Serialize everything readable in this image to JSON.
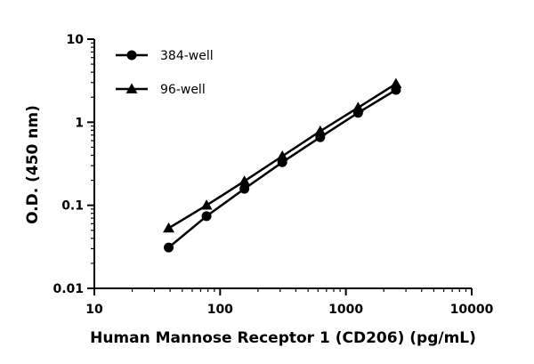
{
  "chart_data": {
    "type": "line",
    "xlabel": "Human Mannose Receptor 1 (CD206) (pg/mL)",
    "ylabel": "O.D. (450 nm)",
    "xscale": "log",
    "yscale": "log",
    "xlim": [
      10,
      10000
    ],
    "ylim": [
      0.01,
      10
    ],
    "x_ticks": [
      "10",
      "100",
      "1000",
      "10000"
    ],
    "y_ticks": [
      "0.01",
      "0.1",
      "1",
      "10"
    ],
    "grid": false,
    "legend_position": "top-left",
    "series": [
      {
        "name": "384-well",
        "marker": "circle",
        "x": [
          39,
          78,
          156,
          312,
          625,
          1250,
          2500
        ],
        "y": [
          0.031,
          0.074,
          0.158,
          0.33,
          0.66,
          1.3,
          2.45
        ]
      },
      {
        "name": "96-well",
        "marker": "triangle",
        "x": [
          39,
          78,
          156,
          312,
          625,
          1250,
          2500
        ],
        "y": [
          0.053,
          0.1,
          0.195,
          0.39,
          0.78,
          1.5,
          2.9
        ]
      }
    ]
  }
}
